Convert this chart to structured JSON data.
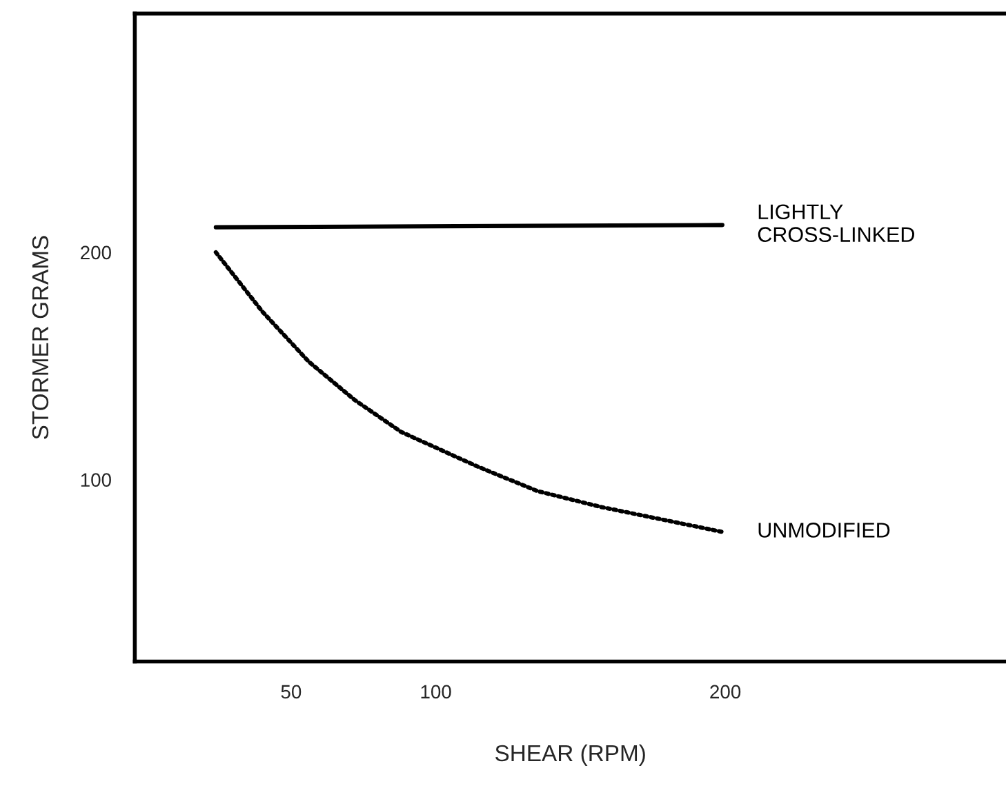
{
  "chart_data": {
    "type": "line",
    "xlabel": "SHEAR (RPM)",
    "ylabel": "STORMER GRAMS",
    "xlim": [
      -4,
      297
    ],
    "ylim": [
      20,
      305
    ],
    "xticks": [
      50,
      100,
      200
    ],
    "yticks": [
      100,
      200
    ],
    "grid": false,
    "legend": false,
    "series": [
      {
        "name": "LIGHTLY\nCROSS-LINKED",
        "color": "#000000",
        "line_style": "solid",
        "x": [
          24,
          199
        ],
        "values": [
          211,
          212
        ]
      },
      {
        "name": "UNMODIFIED",
        "color": "#000000",
        "line_style": "dotted",
        "x": [
          24,
          40,
          56,
          72,
          88,
          114,
          135,
          157,
          199
        ],
        "values": [
          200,
          174,
          152,
          135,
          121,
          106,
          95,
          88,
          77
        ]
      }
    ]
  }
}
